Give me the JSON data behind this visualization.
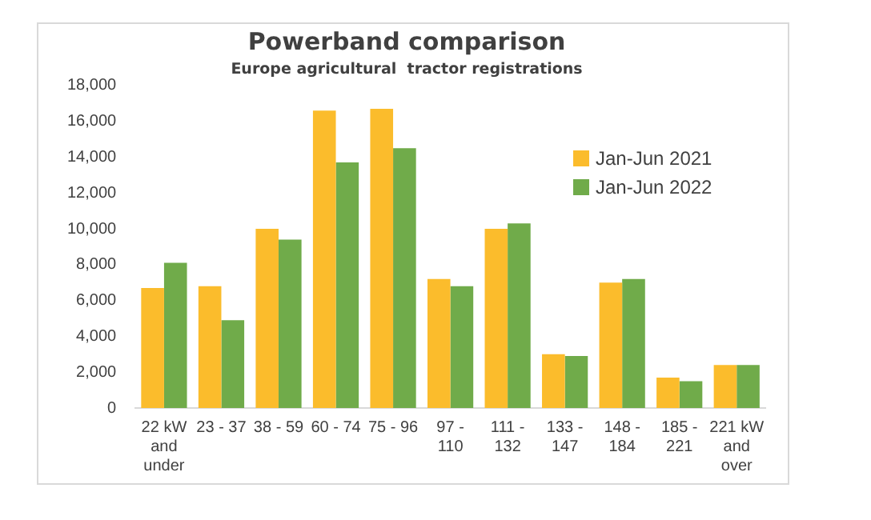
{
  "chart_data": {
    "type": "bar",
    "title": "Powerband comparison",
    "subtitle": "Europe agricultural  tractor registrations",
    "categories": [
      "22 kW and under",
      "23 - 37",
      "38 - 59",
      "60 - 74",
      "75 - 96",
      "97 - 110",
      "111 - 132",
      "133 - 147",
      "148 - 184",
      "185 - 221",
      "221 kW and over"
    ],
    "series": [
      {
        "name": "Jan-Jun 2021",
        "color": "#fbbc2c",
        "values": [
          6700,
          6800,
          10000,
          16600,
          16700,
          7200,
          10000,
          3000,
          7000,
          1700,
          2400
        ]
      },
      {
        "name": "Jan-Jun 2022",
        "color": "#70ab4a",
        "values": [
          8100,
          4900,
          9400,
          13700,
          14500,
          6800,
          10300,
          2900,
          7200,
          1500,
          2400
        ]
      }
    ],
    "ylim": [
      0,
      18000
    ],
    "yticks": [
      0,
      {
        "value": 2000,
        "label": "2,000"
      },
      {
        "value": 4000,
        "label": "4,000"
      },
      {
        "value": 6000,
        "label": "6,000"
      },
      {
        "value": 8000,
        "label": "8,000"
      },
      {
        "value": 10000,
        "label": "10,000"
      },
      {
        "value": 12000,
        "label": "12,000"
      },
      {
        "value": 14000,
        "label": "14,000"
      },
      {
        "value": 16000,
        "label": "16,000"
      },
      {
        "value": 18000,
        "label": "18,000"
      }
    ],
    "grid": false,
    "legend": "top right"
  }
}
